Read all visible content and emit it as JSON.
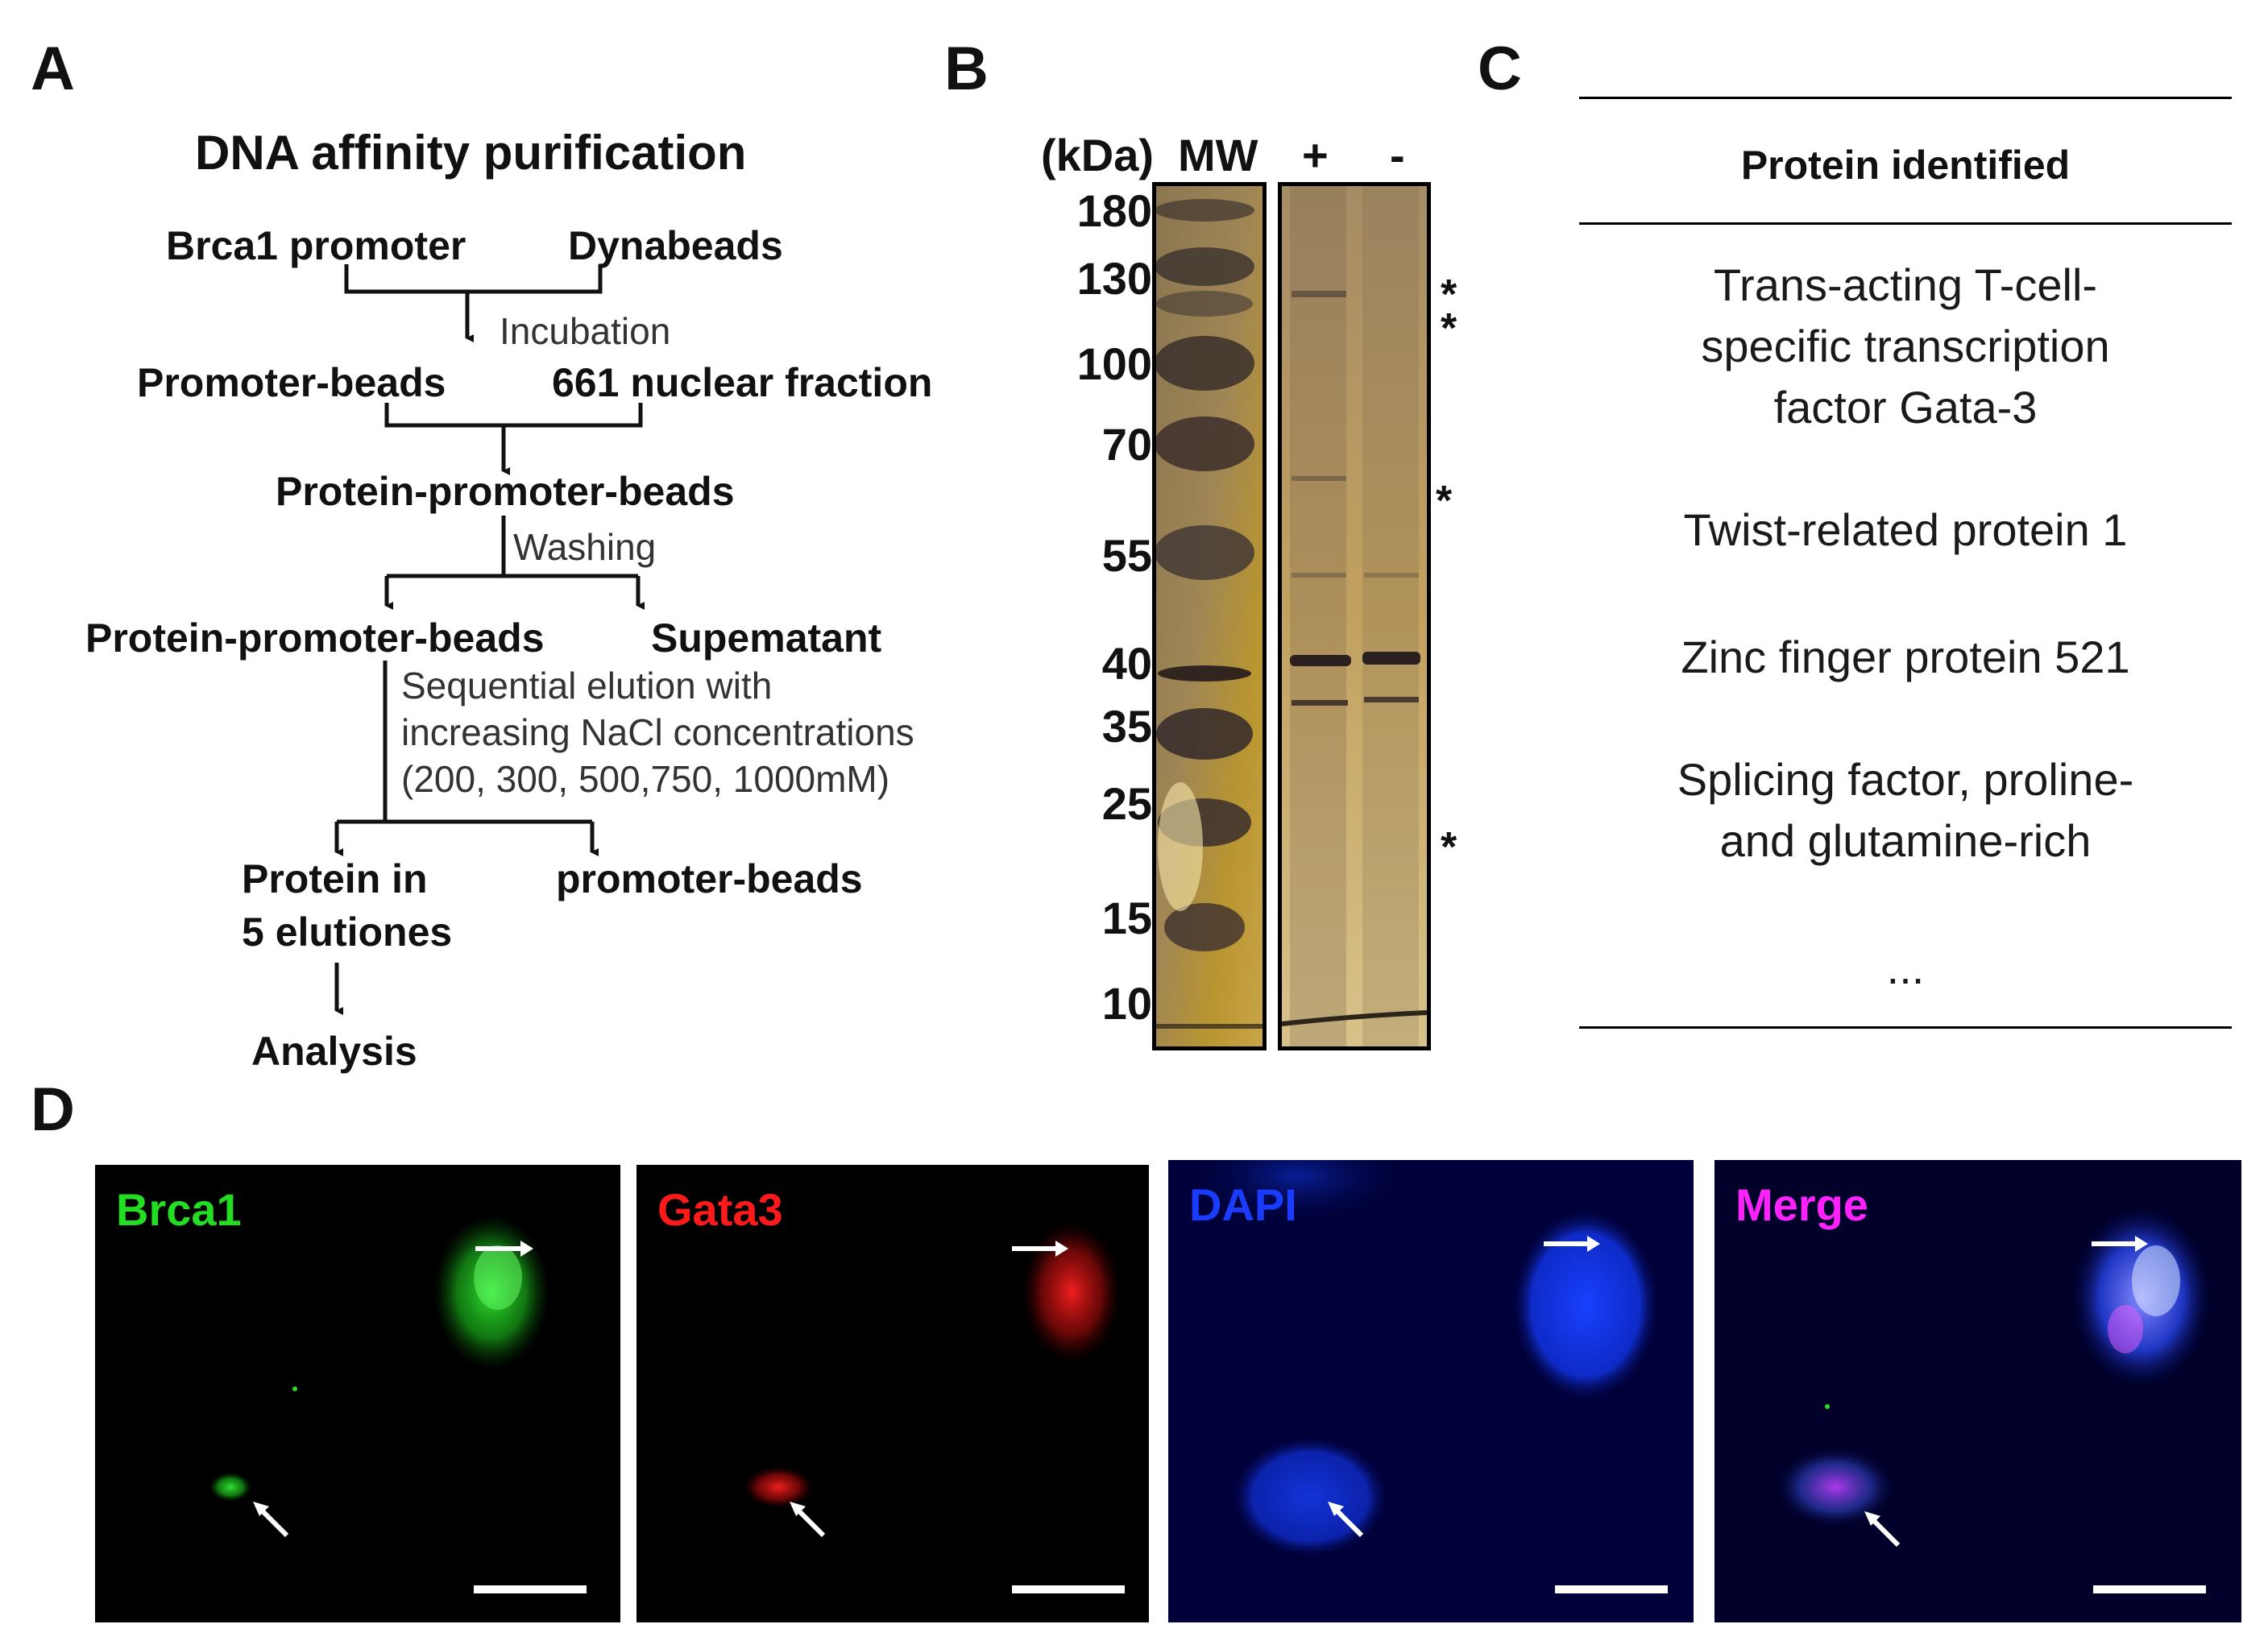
{
  "panels": {
    "a": "A",
    "b": "B",
    "c": "C",
    "d": "D"
  },
  "flow": {
    "title": "DNA affinity purification",
    "brca1_promoter": "Brca1 promoter",
    "dynabeads": "Dynabeads",
    "incubation": "Incubation",
    "promoter_beads": "Promoter-beads",
    "nuclear_fraction": "661 nuclear fraction",
    "protein_promoter_beads": "Protein-promoter-beads",
    "washing": "Washing",
    "protein_promoter_beads_2": "Protein-promoter-beads",
    "supernatant": "Supematant",
    "elution_line1": "Sequential elution with",
    "elution_line2": "increasing NaCl concentrations",
    "elution_line3": "(200, 300, 500,750, 1000mM)",
    "protein_in_line1": "Protein in",
    "protein_in_line2": "5 elutiones",
    "promoter_beads_2": "promoter-beads",
    "analysis": "Analysis"
  },
  "gel": {
    "kda_label": "(kDa)",
    "mw_label": "MW",
    "plus_label": "+",
    "minus_label": "-",
    "markers": [
      "180",
      "130",
      "100",
      "70",
      "55",
      "40",
      "35",
      "25",
      "15",
      "10"
    ],
    "asterisk": "*"
  },
  "table": {
    "header": "Protein identified",
    "entries": [
      [
        "Trans-acting T-cell-",
        "specific transcription",
        "factor Gata-3"
      ],
      [
        "Twist-related protein 1"
      ],
      [
        "Zinc finger protein 521"
      ],
      [
        "Splicing factor, proline-",
        "and glutamine-rich"
      ],
      [
        "..."
      ]
    ]
  },
  "microscopy": {
    "channels": [
      {
        "label": "Brca1",
        "color": "#22dd22"
      },
      {
        "label": "Gata3",
        "color": "#ff1a1a"
      },
      {
        "label": "DAPI",
        "color": "#1a3cff"
      },
      {
        "label": "Merge",
        "color": "#ff22ff"
      }
    ]
  }
}
